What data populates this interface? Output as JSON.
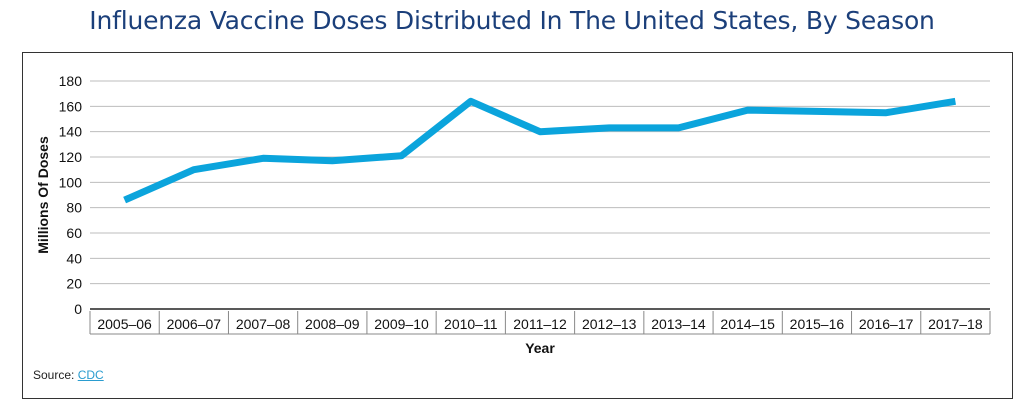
{
  "title": "Influenza Vaccine Doses Distributed In The United States, By Season",
  "source": {
    "label": "Source:",
    "link_text": "CDC"
  },
  "chart_data": {
    "type": "line",
    "title": "Influenza Vaccine Doses Distributed In The United States, By Season",
    "xlabel": "Year",
    "ylabel": "Millions Of Doses",
    "categories": [
      "2005–06",
      "2006–07",
      "2007–08",
      "2008–09",
      "2009–10",
      "2010–11",
      "2011–12",
      "2012–13",
      "2013–14",
      "2014–15",
      "2015–16",
      "2016–17",
      "2017–18"
    ],
    "series": [
      {
        "values": [
          86,
          110,
          119,
          117,
          121,
          164,
          140,
          143,
          143,
          157,
          156,
          155,
          164
        ]
      }
    ],
    "yticks": [
      0,
      20,
      40,
      60,
      80,
      100,
      120,
      140,
      160,
      180
    ],
    "ylim": [
      0,
      180
    ],
    "grid": true,
    "legend": "none",
    "line_color": "#0ba4dc"
  }
}
